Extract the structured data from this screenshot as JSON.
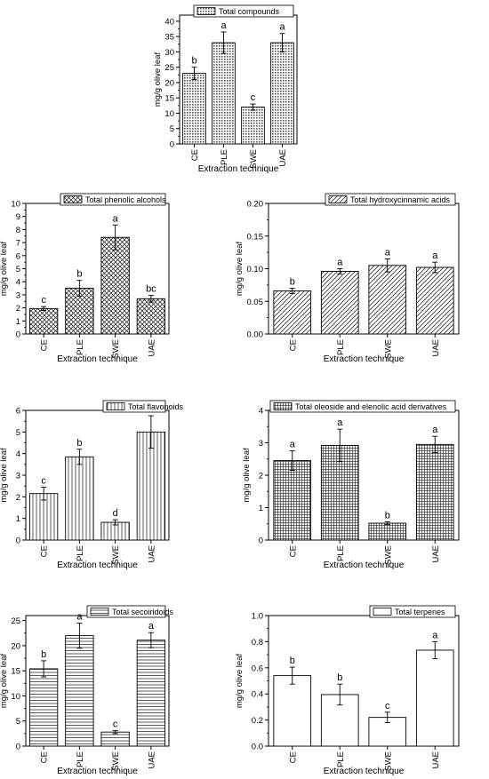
{
  "chart_data": [
    {
      "type": "bar",
      "legend": "Total compounds",
      "categories": [
        "CE",
        "PLE",
        "SWE",
        "UAE"
      ],
      "values": [
        23,
        33,
        12,
        33
      ],
      "errors": [
        2,
        3.5,
        1,
        3
      ],
      "letters": [
        "b",
        "a",
        "c",
        "a"
      ],
      "xlabel": "Extraction technique",
      "ylabel": "mg/g olive leaf",
      "ylim": [
        0,
        42
      ],
      "yticks": [
        "0",
        "5",
        "10",
        "15",
        "20",
        "25",
        "30",
        "35",
        "40"
      ],
      "pattern": "dots",
      "legend_position": "top-right"
    },
    {
      "type": "bar",
      "legend": "Total phenolic alcohols",
      "categories": [
        "CE",
        "PLE",
        "SWE",
        "UAE"
      ],
      "values": [
        1.95,
        3.5,
        7.4,
        2.7
      ],
      "errors": [
        0.15,
        0.6,
        0.95,
        0.25
      ],
      "letters": [
        "c",
        "b",
        "a",
        "bc"
      ],
      "xlabel": "Extraction technique",
      "ylabel": "mg/g olive leaf",
      "ylim": [
        0,
        10
      ],
      "yticks": [
        "0",
        "1",
        "2",
        "3",
        "4",
        "5",
        "6",
        "7",
        "8",
        "9",
        "10"
      ],
      "pattern": "crosshatch",
      "legend_position": "top-right"
    },
    {
      "type": "bar",
      "legend": "Total hydroxycinnamic acids",
      "categories": [
        "CE",
        "PLE",
        "SWE",
        "UAE"
      ],
      "values": [
        0.066,
        0.096,
        0.105,
        0.102
      ],
      "errors": [
        0.004,
        0.004,
        0.01,
        0.008
      ],
      "letters": [
        "b",
        "a",
        "a",
        "a"
      ],
      "xlabel": "Extraction technique",
      "ylabel": "mg/g olive leaf",
      "ylim": [
        0,
        0.2
      ],
      "yticks": [
        "0.00",
        "0.05",
        "0.10",
        "0.15",
        "0.20"
      ],
      "pattern": "diagonal",
      "legend_position": "top-right"
    },
    {
      "type": "bar",
      "legend": "Total flavonoids",
      "categories": [
        "CE",
        "PLE",
        "SWE",
        "UAE"
      ],
      "values": [
        2.15,
        3.85,
        0.82,
        5.0
      ],
      "errors": [
        0.3,
        0.35,
        0.12,
        0.75
      ],
      "letters": [
        "c",
        "b",
        "d",
        "a"
      ],
      "xlabel": "Extraction technique",
      "ylabel": "mg/g olive leaf",
      "ylim": [
        0,
        6
      ],
      "yticks": [
        "0",
        "1",
        "2",
        "3",
        "4",
        "5",
        "6"
      ],
      "pattern": "vertical",
      "legend_position": "top-right"
    },
    {
      "type": "bar",
      "legend": "Total oleoside and elenolic acid derivatives",
      "categories": [
        "CE",
        "PLE",
        "SWE",
        "UAE"
      ],
      "values": [
        2.45,
        2.92,
        0.52,
        2.95
      ],
      "errors": [
        0.3,
        0.5,
        0.04,
        0.25
      ],
      "letters": [
        "a",
        "a",
        "b",
        "a"
      ],
      "xlabel": "Extraction technique",
      "ylabel": "mg/g olive leaf",
      "ylim": [
        0,
        4
      ],
      "yticks": [
        "0",
        "1",
        "2",
        "3",
        "4"
      ],
      "pattern": "grid",
      "legend_position": "top-right"
    },
    {
      "type": "bar",
      "legend": "Total secoiridoids",
      "categories": [
        "CE",
        "PLE",
        "SWE",
        "UAE"
      ],
      "values": [
        15.4,
        22,
        2.8,
        21.1
      ],
      "errors": [
        1.6,
        2.5,
        0.3,
        1.5
      ],
      "letters": [
        "b",
        "a",
        "c",
        "a"
      ],
      "xlabel": "Extraction technique",
      "ylabel": "mg/g olive leaf",
      "ylim": [
        0,
        26
      ],
      "yticks": [
        "0",
        "5",
        "10",
        "15",
        "20",
        "25"
      ],
      "pattern": "horizontal",
      "legend_position": "top-right"
    },
    {
      "type": "bar",
      "legend": "Total terpenes",
      "categories": [
        "CE",
        "PLE",
        "SWE",
        "UAE"
      ],
      "values": [
        0.54,
        0.395,
        0.22,
        0.735
      ],
      "errors": [
        0.065,
        0.08,
        0.04,
        0.065
      ],
      "letters": [
        "b",
        "b",
        "c",
        "a"
      ],
      "xlabel": "Extraction technique",
      "ylabel": "mg/g olive leaf",
      "ylim": [
        0,
        1.0
      ],
      "yticks": [
        "0.0",
        "0.2",
        "0.4",
        "0.6",
        "0.8",
        "1.0"
      ],
      "pattern": "none",
      "legend_position": "top-right"
    }
  ]
}
